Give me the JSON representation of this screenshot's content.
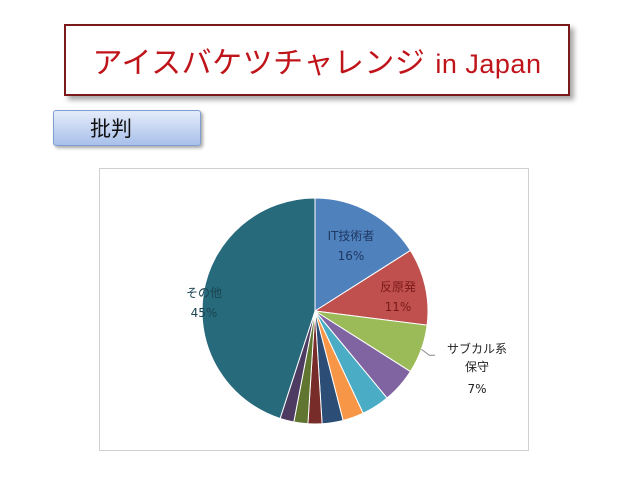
{
  "slide": {
    "title_jp": "アイスバケツチャレンジ",
    "title_en": "in Japan",
    "tag_label": "批判"
  },
  "colors": {
    "title_text": "#c0141b",
    "title_border": "#7a1a1a"
  },
  "chart_data": {
    "type": "pie",
    "start_angle_deg": 0,
    "direction": "clockwise",
    "slices": [
      {
        "label": "IT技術者",
        "percent_label": "16%",
        "value": 16,
        "color": "#4f81bd",
        "label_visible": true
      },
      {
        "label": "反原発",
        "percent_label": "11%",
        "value": 11,
        "color": "#c0504d",
        "label_visible": true
      },
      {
        "label": "サブカル系\n保守",
        "percent_label": "7%",
        "value": 7,
        "color": "#9bbb59",
        "label_visible": true
      },
      {
        "label": "",
        "percent_label": "",
        "value": 5,
        "color": "#8064a2",
        "label_visible": false
      },
      {
        "label": "",
        "percent_label": "",
        "value": 4,
        "color": "#4bacc6",
        "label_visible": false
      },
      {
        "label": "",
        "percent_label": "",
        "value": 3,
        "color": "#f79646",
        "label_visible": false
      },
      {
        "label": "",
        "percent_label": "",
        "value": 3,
        "color": "#2c4d75",
        "label_visible": false
      },
      {
        "label": "",
        "percent_label": "",
        "value": 2,
        "color": "#772c2a",
        "label_visible": false
      },
      {
        "label": "",
        "percent_label": "",
        "value": 2,
        "color": "#5f7530",
        "label_visible": false
      },
      {
        "label": "",
        "percent_label": "",
        "value": 2,
        "color": "#4d3b62",
        "label_visible": false
      },
      {
        "label": "その他",
        "percent_label": "45%",
        "value": 45,
        "color": "#276a7c",
        "label_visible": true
      }
    ]
  }
}
